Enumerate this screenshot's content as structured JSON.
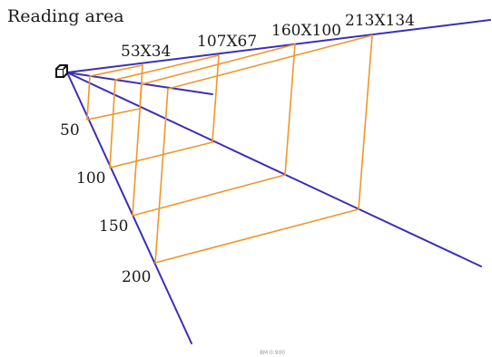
{
  "title": "Reading area",
  "size_labels": [
    "53X34",
    "107X67",
    "160X100",
    "213X134"
  ],
  "distance_labels": [
    "50",
    "100",
    "150",
    "200"
  ],
  "footer": "8M 0.900",
  "colors": {
    "rays": "#3a2fb8",
    "frames": "#f0962a",
    "text": "#1a1a1a"
  },
  "icon": "camera-icon"
}
